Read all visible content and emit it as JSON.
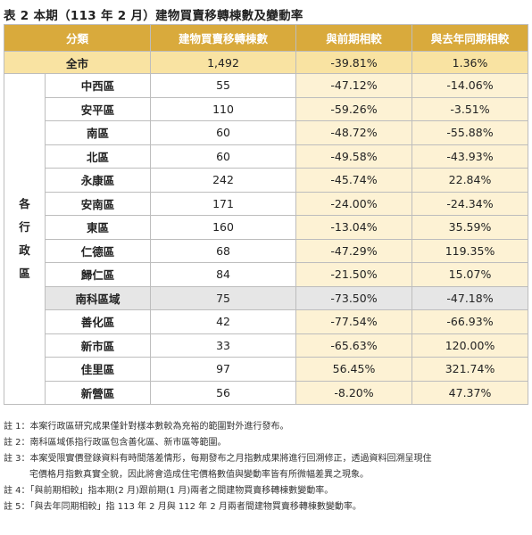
{
  "title": "表 2 本期（113 年 2 月）建物買賣移轉棟數及變動率",
  "headers": [
    "分類",
    "建物買賣移轉棟數",
    "與前期相較",
    "與去年同期相較"
  ],
  "total": {
    "label": "全市",
    "count": "1,492",
    "prev": "-39.81%",
    "yoy": "1.36%"
  },
  "group_label": [
    "各",
    "行",
    "政",
    "區"
  ],
  "rows": [
    {
      "name": "中西區",
      "count": "55",
      "prev": "-47.12%",
      "yoy": "-14.06%"
    },
    {
      "name": "安平區",
      "count": "110",
      "prev": "-59.26%",
      "yoy": "-3.51%"
    },
    {
      "name": "南區",
      "count": "60",
      "prev": "-48.72%",
      "yoy": "-55.88%"
    },
    {
      "name": "北區",
      "count": "60",
      "prev": "-49.58%",
      "yoy": "-43.93%"
    },
    {
      "name": "永康區",
      "count": "242",
      "prev": "-45.74%",
      "yoy": "22.84%"
    },
    {
      "name": "安南區",
      "count": "171",
      "prev": "-24.00%",
      "yoy": "-24.34%"
    },
    {
      "name": "東區",
      "count": "160",
      "prev": "-13.04%",
      "yoy": "35.59%"
    },
    {
      "name": "仁德區",
      "count": "68",
      "prev": "-47.29%",
      "yoy": "119.35%"
    },
    {
      "name": "歸仁區",
      "count": "84",
      "prev": "-21.50%",
      "yoy": "15.07%"
    },
    {
      "name": "南科區域",
      "count": "75",
      "prev": "-73.50%",
      "yoy": "-47.18%"
    },
    {
      "name": "善化區",
      "count": "42",
      "prev": "-77.54%",
      "yoy": "-66.93%"
    },
    {
      "name": "新市區",
      "count": "33",
      "prev": "-65.63%",
      "yoy": "120.00%"
    },
    {
      "name": "佳里區",
      "count": "97",
      "prev": "56.45%",
      "yoy": "321.74%"
    },
    {
      "name": "新營區",
      "count": "56",
      "prev": "-8.20%",
      "yoy": "47.37%"
    }
  ],
  "notes": [
    "註 1：本案行政區研究成果僅針對樣本數較為充裕的範圍對外進行發布。",
    "註 2：南科區域係指行政區包含善化區、新市區等範圍。",
    "註 3：本案受限實價登錄資料有時間落差情形，每期發布之月指數成果將進行回溯修正，透過資料回溯呈現住",
    "宅價格月指數真實全貌，因此將會造成住宅價格數值與變動率皆有所微幅差異之現象。",
    "註 4：「與前期相較」指本期(2 月)跟前期(1 月)兩者之間建物買賣移轉棟數變動率。",
    "註 5：「與去年同期相較」指 113 年 2 月與 112 年 2 月兩者間建物買賣移轉棟數變動率。"
  ]
}
